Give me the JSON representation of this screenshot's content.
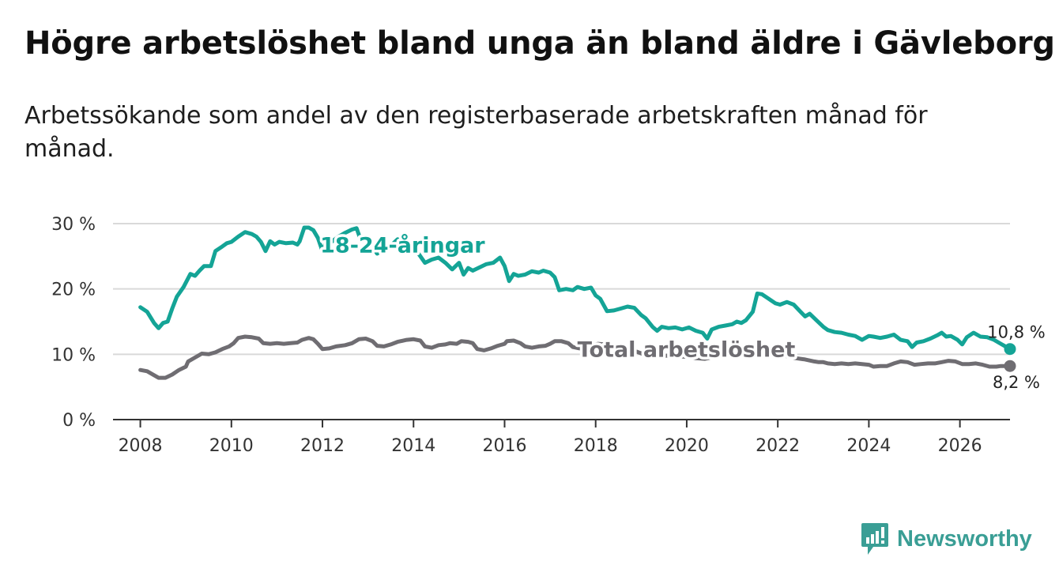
{
  "title": "Högre arbetslöshet bland unga än bland äldre i Gävleborg",
  "subtitle": "Arbetssökande som andel av den registerbaserade arbetskraften månad för månad.",
  "brand": {
    "name": "Newsworthy",
    "icon": "newsworthy-logo-icon"
  },
  "colors": {
    "youth": "#14a496",
    "total": "#6f6d72",
    "grid": "#d9d9d9",
    "axis": "#333333"
  },
  "chart_data": {
    "type": "line",
    "title": "Högre arbetslöshet bland unga än bland äldre i Gävleborg",
    "xlabel": "",
    "ylabel": "",
    "xlim": [
      2007.4,
      2027.1
    ],
    "ylim": [
      0,
      30
    ],
    "x_ticks": [
      2008,
      2010,
      2012,
      2014,
      2016,
      2018,
      2020,
      2022,
      2024,
      2026
    ],
    "x_tick_labels": [
      "2008",
      "2010",
      "2012",
      "2014",
      "2016",
      "2018",
      "2020",
      "2022",
      "2024",
      "2026"
    ],
    "y_ticks": [
      0,
      10,
      20,
      30
    ],
    "y_tick_labels": [
      "0 %",
      "10 %",
      "20 %",
      "30 %"
    ],
    "grid": true,
    "series": [
      {
        "name": "18-24-åringar",
        "label": "18-24-åringar",
        "end_label": "10,8 %",
        "color": "#14a496",
        "points": [
          [
            2008.0,
            17.2
          ],
          [
            2008.15,
            16.5
          ],
          [
            2008.3,
            14.8
          ],
          [
            2008.4,
            14.0
          ],
          [
            2008.5,
            14.8
          ],
          [
            2008.6,
            15.0
          ],
          [
            2008.7,
            17.0
          ],
          [
            2008.8,
            18.8
          ],
          [
            2008.95,
            20.3
          ],
          [
            2009.1,
            22.3
          ],
          [
            2009.2,
            22.0
          ],
          [
            2009.3,
            22.8
          ],
          [
            2009.4,
            23.5
          ],
          [
            2009.55,
            23.5
          ],
          [
            2009.65,
            25.8
          ],
          [
            2009.8,
            26.5
          ],
          [
            2009.9,
            27.0
          ],
          [
            2010.0,
            27.2
          ],
          [
            2010.15,
            28.0
          ],
          [
            2010.3,
            28.7
          ],
          [
            2010.45,
            28.4
          ],
          [
            2010.55,
            28.0
          ],
          [
            2010.65,
            27.2
          ],
          [
            2010.75,
            25.8
          ],
          [
            2010.85,
            27.3
          ],
          [
            2010.95,
            26.8
          ],
          [
            2011.05,
            27.2
          ],
          [
            2011.2,
            27.0
          ],
          [
            2011.35,
            27.1
          ],
          [
            2011.45,
            26.8
          ],
          [
            2011.5,
            27.3
          ],
          [
            2011.6,
            29.4
          ],
          [
            2011.7,
            29.4
          ],
          [
            2011.8,
            29.0
          ],
          [
            2011.9,
            27.8
          ],
          [
            2012.0,
            25.8
          ],
          [
            2012.1,
            27.5
          ],
          [
            2012.2,
            27.2
          ],
          [
            2012.35,
            28.0
          ],
          [
            2012.5,
            28.6
          ],
          [
            2012.65,
            29.1
          ],
          [
            2012.75,
            29.3
          ],
          [
            2012.85,
            27.3
          ],
          [
            2012.95,
            27.5
          ],
          [
            2013.05,
            27.0
          ],
          [
            2013.2,
            25.4
          ],
          [
            2013.35,
            26.0
          ],
          [
            2013.5,
            26.6
          ],
          [
            2013.65,
            27.6
          ],
          [
            2013.8,
            27.0
          ],
          [
            2013.95,
            26.5
          ],
          [
            2014.1,
            25.5
          ],
          [
            2014.25,
            24.0
          ],
          [
            2014.4,
            24.5
          ],
          [
            2014.55,
            24.8
          ],
          [
            2014.7,
            24.0
          ],
          [
            2014.85,
            23.0
          ],
          [
            2015.0,
            24.0
          ],
          [
            2015.1,
            22.2
          ],
          [
            2015.2,
            23.2
          ],
          [
            2015.3,
            22.8
          ],
          [
            2015.45,
            23.3
          ],
          [
            2015.6,
            23.8
          ],
          [
            2015.75,
            24.0
          ],
          [
            2015.9,
            24.8
          ],
          [
            2016.0,
            23.5
          ],
          [
            2016.1,
            21.2
          ],
          [
            2016.2,
            22.3
          ],
          [
            2016.3,
            22.0
          ],
          [
            2016.45,
            22.2
          ],
          [
            2016.6,
            22.7
          ],
          [
            2016.75,
            22.5
          ],
          [
            2016.85,
            22.8
          ],
          [
            2017.0,
            22.5
          ],
          [
            2017.1,
            21.8
          ],
          [
            2017.2,
            19.8
          ],
          [
            2017.35,
            20.0
          ],
          [
            2017.5,
            19.8
          ],
          [
            2017.6,
            20.3
          ],
          [
            2017.75,
            20.0
          ],
          [
            2017.9,
            20.2
          ],
          [
            2018.0,
            19.0
          ],
          [
            2018.1,
            18.5
          ],
          [
            2018.25,
            16.6
          ],
          [
            2018.4,
            16.7
          ],
          [
            2018.55,
            17.0
          ],
          [
            2018.7,
            17.3
          ],
          [
            2018.85,
            17.1
          ],
          [
            2019.0,
            16.0
          ],
          [
            2019.1,
            15.5
          ],
          [
            2019.25,
            14.2
          ],
          [
            2019.35,
            13.6
          ],
          [
            2019.45,
            14.2
          ],
          [
            2019.6,
            14.0
          ],
          [
            2019.75,
            14.1
          ],
          [
            2019.9,
            13.8
          ],
          [
            2020.05,
            14.1
          ],
          [
            2020.2,
            13.6
          ],
          [
            2020.35,
            13.3
          ],
          [
            2020.45,
            12.4
          ],
          [
            2020.55,
            13.8
          ],
          [
            2020.7,
            14.2
          ],
          [
            2020.85,
            14.4
          ],
          [
            2021.0,
            14.6
          ],
          [
            2021.1,
            15.0
          ],
          [
            2021.2,
            14.8
          ],
          [
            2021.3,
            15.2
          ],
          [
            2021.45,
            16.5
          ],
          [
            2021.55,
            19.3
          ],
          [
            2021.65,
            19.2
          ],
          [
            2021.8,
            18.5
          ],
          [
            2021.95,
            17.8
          ],
          [
            2022.05,
            17.6
          ],
          [
            2022.2,
            18.0
          ],
          [
            2022.35,
            17.6
          ],
          [
            2022.5,
            16.5
          ],
          [
            2022.6,
            15.8
          ],
          [
            2022.7,
            16.2
          ],
          [
            2022.85,
            15.2
          ],
          [
            2023.0,
            14.2
          ],
          [
            2023.1,
            13.7
          ],
          [
            2023.25,
            13.4
          ],
          [
            2023.4,
            13.3
          ],
          [
            2023.55,
            13.0
          ],
          [
            2023.7,
            12.8
          ],
          [
            2023.85,
            12.2
          ],
          [
            2024.0,
            12.8
          ],
          [
            2024.1,
            12.7
          ],
          [
            2024.25,
            12.5
          ],
          [
            2024.4,
            12.7
          ],
          [
            2024.55,
            13.0
          ],
          [
            2024.7,
            12.2
          ],
          [
            2024.85,
            12.0
          ],
          [
            2024.95,
            11.1
          ],
          [
            2025.05,
            11.8
          ],
          [
            2025.2,
            12.0
          ],
          [
            2025.35,
            12.4
          ],
          [
            2025.5,
            12.9
          ],
          [
            2025.6,
            13.3
          ],
          [
            2025.7,
            12.7
          ],
          [
            2025.8,
            12.8
          ],
          [
            2025.95,
            12.2
          ],
          [
            2026.05,
            11.5
          ],
          [
            2026.15,
            12.6
          ],
          [
            2026.3,
            13.3
          ],
          [
            2026.45,
            12.7
          ],
          [
            2026.6,
            12.6
          ],
          [
            2026.75,
            12.2
          ],
          [
            2026.85,
            11.8
          ],
          [
            2027.0,
            11.2
          ],
          [
            2027.1,
            10.8
          ]
        ]
      },
      {
        "name": "Total arbetslöshet",
        "label": "Total arbetslöshet",
        "end_label": "8,2 %",
        "color": "#6f6d72",
        "points": [
          [
            2008.0,
            7.6
          ],
          [
            2008.15,
            7.4
          ],
          [
            2008.3,
            6.8
          ],
          [
            2008.4,
            6.4
          ],
          [
            2008.55,
            6.4
          ],
          [
            2008.7,
            6.9
          ],
          [
            2008.85,
            7.6
          ],
          [
            2009.0,
            8.1
          ],
          [
            2009.05,
            8.9
          ],
          [
            2009.2,
            9.5
          ],
          [
            2009.35,
            10.1
          ],
          [
            2009.5,
            10.0
          ],
          [
            2009.65,
            10.3
          ],
          [
            2009.8,
            10.8
          ],
          [
            2009.95,
            11.2
          ],
          [
            2010.05,
            11.7
          ],
          [
            2010.15,
            12.5
          ],
          [
            2010.3,
            12.7
          ],
          [
            2010.45,
            12.6
          ],
          [
            2010.6,
            12.4
          ],
          [
            2010.7,
            11.7
          ],
          [
            2010.85,
            11.6
          ],
          [
            2011.0,
            11.7
          ],
          [
            2011.15,
            11.6
          ],
          [
            2011.3,
            11.7
          ],
          [
            2011.45,
            11.8
          ],
          [
            2011.55,
            12.2
          ],
          [
            2011.7,
            12.5
          ],
          [
            2011.8,
            12.3
          ],
          [
            2011.9,
            11.6
          ],
          [
            2012.0,
            10.8
          ],
          [
            2012.15,
            10.9
          ],
          [
            2012.3,
            11.2
          ],
          [
            2012.5,
            11.4
          ],
          [
            2012.65,
            11.7
          ],
          [
            2012.8,
            12.3
          ],
          [
            2012.95,
            12.4
          ],
          [
            2013.1,
            12.0
          ],
          [
            2013.2,
            11.3
          ],
          [
            2013.35,
            11.2
          ],
          [
            2013.5,
            11.5
          ],
          [
            2013.65,
            11.9
          ],
          [
            2013.85,
            12.2
          ],
          [
            2014.0,
            12.3
          ],
          [
            2014.15,
            12.1
          ],
          [
            2014.25,
            11.2
          ],
          [
            2014.4,
            11.0
          ],
          [
            2014.55,
            11.4
          ],
          [
            2014.7,
            11.5
          ],
          [
            2014.8,
            11.7
          ],
          [
            2014.95,
            11.6
          ],
          [
            2015.05,
            12.0
          ],
          [
            2015.2,
            11.9
          ],
          [
            2015.3,
            11.7
          ],
          [
            2015.4,
            10.8
          ],
          [
            2015.55,
            10.6
          ],
          [
            2015.7,
            10.9
          ],
          [
            2015.85,
            11.3
          ],
          [
            2016.0,
            11.6
          ],
          [
            2016.05,
            12.0
          ],
          [
            2016.2,
            12.1
          ],
          [
            2016.35,
            11.7
          ],
          [
            2016.45,
            11.2
          ],
          [
            2016.6,
            11.0
          ],
          [
            2016.75,
            11.2
          ],
          [
            2016.9,
            11.3
          ],
          [
            2017.0,
            11.6
          ],
          [
            2017.1,
            12.0
          ],
          [
            2017.25,
            12.0
          ],
          [
            2017.4,
            11.7
          ],
          [
            2017.5,
            11.1
          ],
          [
            2017.65,
            10.9
          ],
          [
            2017.8,
            11.1
          ],
          [
            2017.95,
            11.4
          ],
          [
            2018.05,
            11.6
          ],
          [
            2018.2,
            11.5
          ],
          [
            2018.35,
            11.3
          ],
          [
            2018.45,
            10.7
          ],
          [
            2018.6,
            10.4
          ],
          [
            2018.75,
            10.3
          ],
          [
            2018.9,
            10.4
          ],
          [
            2019.05,
            10.0
          ],
          [
            2019.2,
            10.0
          ],
          [
            2019.4,
            9.7
          ],
          [
            2019.6,
            9.8
          ],
          [
            2019.8,
            9.7
          ],
          [
            2020.0,
            9.6
          ],
          [
            2020.2,
            9.4
          ],
          [
            2020.4,
            9.3
          ],
          [
            2020.6,
            9.6
          ],
          [
            2020.8,
            10.0
          ],
          [
            2021.0,
            10.5
          ],
          [
            2021.2,
            10.7
          ],
          [
            2021.4,
            10.6
          ],
          [
            2021.6,
            10.4
          ],
          [
            2021.8,
            10.2
          ],
          [
            2022.0,
            10.0
          ],
          [
            2022.2,
            9.7
          ],
          [
            2022.4,
            9.4
          ],
          [
            2022.6,
            9.2
          ],
          [
            2022.8,
            8.9
          ],
          [
            2022.9,
            8.8
          ],
          [
            2023.0,
            8.8
          ],
          [
            2023.1,
            8.6
          ],
          [
            2023.25,
            8.5
          ],
          [
            2023.4,
            8.6
          ],
          [
            2023.55,
            8.5
          ],
          [
            2023.7,
            8.6
          ],
          [
            2023.85,
            8.5
          ],
          [
            2024.0,
            8.4
          ],
          [
            2024.1,
            8.1
          ],
          [
            2024.25,
            8.2
          ],
          [
            2024.4,
            8.2
          ],
          [
            2024.55,
            8.6
          ],
          [
            2024.7,
            8.9
          ],
          [
            2024.85,
            8.8
          ],
          [
            2025.0,
            8.4
          ],
          [
            2025.15,
            8.5
          ],
          [
            2025.3,
            8.6
          ],
          [
            2025.45,
            8.6
          ],
          [
            2025.6,
            8.8
          ],
          [
            2025.75,
            9.0
          ],
          [
            2025.9,
            8.9
          ],
          [
            2026.05,
            8.5
          ],
          [
            2026.2,
            8.5
          ],
          [
            2026.35,
            8.6
          ],
          [
            2026.5,
            8.4
          ],
          [
            2026.65,
            8.1
          ],
          [
            2026.8,
            8.1
          ],
          [
            2026.9,
            8.2
          ],
          [
            2027.0,
            8.2
          ],
          [
            2027.1,
            8.2
          ]
        ]
      }
    ]
  }
}
